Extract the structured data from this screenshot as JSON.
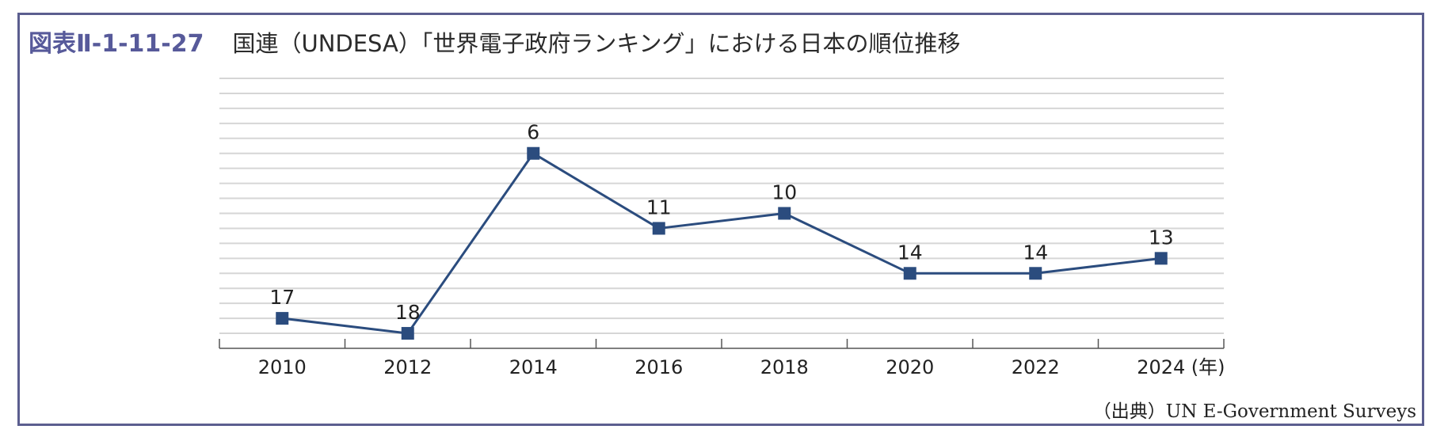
{
  "figure_number": "図表Ⅱ-1-11-27",
  "title": "国連（UNDESA）「世界電子政府ランキング」における日本の順位推移",
  "source": "（出典）UN E-Government Surveys",
  "chart_data": {
    "type": "line",
    "title": "国連（UNDESA）「世界電子政府ランキング」における日本の順位推移",
    "x_unit": "(年)",
    "categories": [
      "2010",
      "2012",
      "2014",
      "2016",
      "2018",
      "2020",
      "2022",
      "2024"
    ],
    "series": [
      {
        "values": [
          17,
          18,
          6,
          11,
          10,
          14,
          14,
          13
        ]
      }
    ],
    "y_axis": {
      "inverted": true,
      "range": [
        1,
        19
      ],
      "tick_labels_shown": false
    },
    "grid": true,
    "colors": {
      "line": "#2b4c7e",
      "marker": "#2b4c7e",
      "grid": "#d6d6d6",
      "axis": "#555555",
      "frame": "#5b5e8f",
      "figure_number": "#575a9a"
    }
  }
}
